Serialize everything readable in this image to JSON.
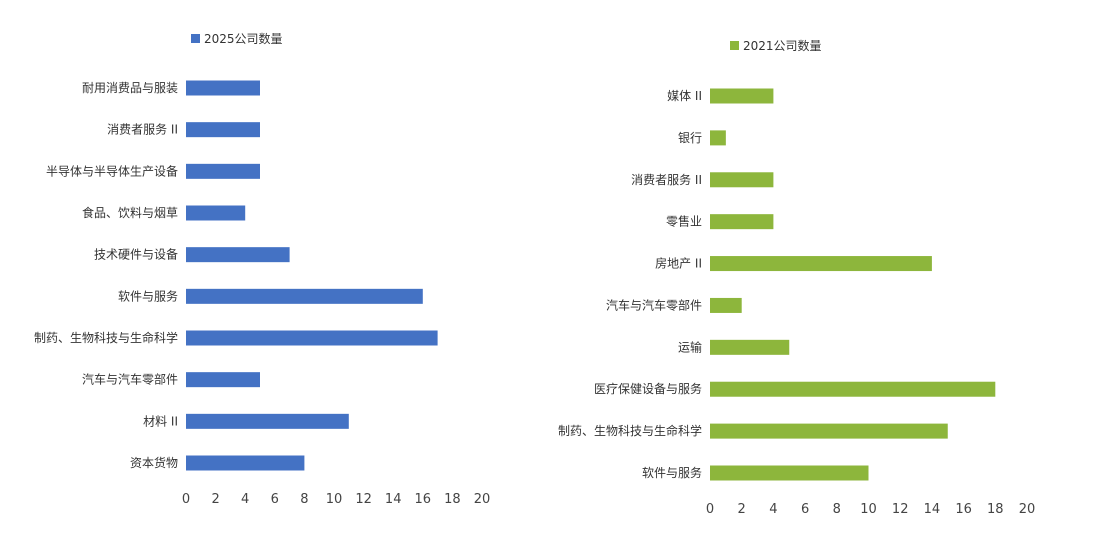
{
  "chart_data": [
    {
      "type": "bar",
      "orientation": "horizontal",
      "title": "",
      "legend_position": "top",
      "series": [
        {
          "name": "2025公司数量",
          "color": "#4472c4"
        }
      ],
      "categories": [
        "耐用消费品与服装",
        "消费者服务 II",
        "半导体与半导体生产设备",
        "食品、饮料与烟草",
        "技术硬件与设备",
        "软件与服务",
        "制药、生物科技与生命科学",
        "汽车与汽车零部件",
        "材料 II",
        "资本货物"
      ],
      "values": [
        5,
        5,
        5,
        4,
        7,
        16,
        17,
        5,
        11,
        8
      ],
      "xlim": [
        0,
        20
      ],
      "xticks": [
        "0",
        "2",
        "4",
        "6",
        "8",
        "10",
        "12",
        "14",
        "16",
        "18",
        "20"
      ],
      "grid": false
    },
    {
      "type": "bar",
      "orientation": "horizontal",
      "title": "",
      "legend_position": "top",
      "series": [
        {
          "name": "2021公司数量",
          "color": "#8db63c"
        }
      ],
      "categories": [
        "媒体 II",
        "银行",
        "消费者服务 II",
        "零售业",
        "房地产 II",
        "汽车与汽车零部件",
        "运输",
        "医疗保健设备与服务",
        "制药、生物科技与生命科学",
        "软件与服务"
      ],
      "values": [
        4,
        1,
        4,
        4,
        14,
        2,
        5,
        18,
        15,
        10
      ],
      "xlim": [
        0,
        20
      ],
      "xticks": [
        "0",
        "2",
        "4",
        "6",
        "8",
        "10",
        "12",
        "14",
        "16",
        "18",
        "20"
      ],
      "grid": false
    }
  ]
}
